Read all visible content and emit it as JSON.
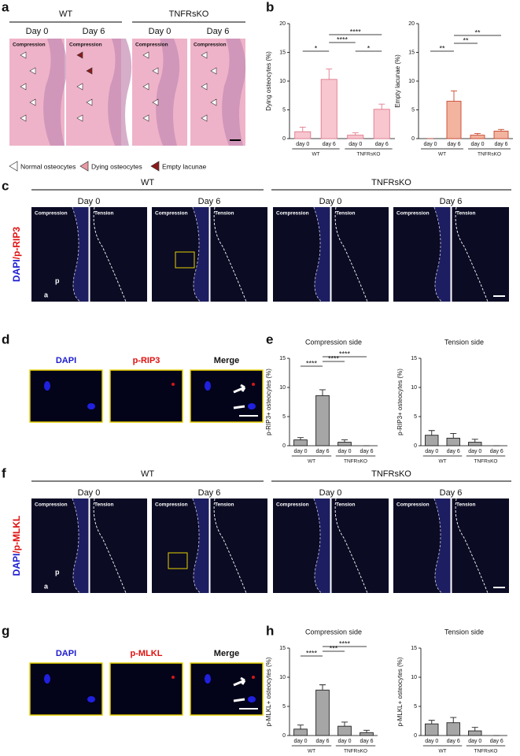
{
  "panel_labels": [
    "a",
    "b",
    "c",
    "d",
    "e",
    "f",
    "g",
    "h"
  ],
  "panel_a": {
    "groups": [
      "WT",
      "TNFRsKO"
    ],
    "days": [
      "Day 0",
      "Day 6",
      "Day 0",
      "Day 6"
    ],
    "image_labels": [
      "Compression",
      "Compression",
      "Compression",
      "Compression"
    ],
    "legend": [
      "Normal osteocytes",
      "Dying osteocytes",
      "Empty lacunae"
    ]
  },
  "panel_c": {
    "stain": [
      "DAPI",
      "/p-RIP3"
    ],
    "groups": [
      "WT",
      "TNFRsKO"
    ],
    "days": [
      "Day 0",
      "Day 6",
      "Day 0",
      "Day 6"
    ],
    "image_labels": [
      "Compression",
      "Tension",
      "Compression",
      "Tension",
      "Compression",
      "Tension",
      "Compression",
      "Tension"
    ],
    "markers": [
      "a",
      "p"
    ]
  },
  "panel_d": {
    "channels": [
      "DAPI",
      "p-RIP3",
      "Merge"
    ]
  },
  "panel_f": {
    "stain": [
      "DAPI",
      "/p-MLKL"
    ],
    "groups": [
      "WT",
      "TNFRsKO"
    ],
    "days": [
      "Day 0",
      "Day 6",
      "Day 0",
      "Day 6"
    ],
    "image_labels": [
      "Compression",
      "Tension",
      "Compression",
      "Tension",
      "Compression",
      "Tension",
      "Compression",
      "Tension"
    ],
    "markers": [
      "a",
      "p"
    ]
  },
  "panel_g": {
    "channels": [
      "DAPI",
      "p-MLKL",
      "Merge"
    ]
  },
  "chart_data": [
    {
      "type": "bar",
      "y_label": "Dying osteocytes (%)",
      "categories": [
        "day 0",
        "day 6",
        "day 0",
        "day 6"
      ],
      "groups": [
        "WT",
        "TNFRsKO"
      ],
      "values": [
        1.2,
        10.3,
        0.6,
        5.1
      ],
      "errors": [
        0.8,
        1.8,
        0.4,
        0.9
      ],
      "color": "#f7c6cf",
      "edge_color": "#e07a8c",
      "ylim": [
        0,
        20
      ],
      "yticks": [
        0,
        5,
        10,
        15,
        20
      ],
      "annotations": [
        "*",
        "****",
        "****",
        "*"
      ]
    },
    {
      "type": "bar",
      "y_label": "Empty lacunae (%)",
      "categories": [
        "day 0",
        "day 6",
        "day 0",
        "day 6"
      ],
      "groups": [
        "WT",
        "TNFRsKO"
      ],
      "values": [
        0,
        6.5,
        0.6,
        1.3
      ],
      "errors": [
        0,
        1.8,
        0.3,
        0.3
      ],
      "color": "#f2b39f",
      "edge_color": "#c8482e",
      "ylim": [
        0,
        20
      ],
      "yticks": [
        0,
        5,
        10,
        15,
        20
      ],
      "annotations": [
        "**",
        "**",
        "**"
      ]
    },
    {
      "type": "bar",
      "title": "Compression side",
      "y_label": "p-RIP3+ osteocytes (%)",
      "categories": [
        "day 0",
        "day 6",
        "day 0",
        "day 6"
      ],
      "groups": [
        "WT",
        "TNFRsKO"
      ],
      "values": [
        1.0,
        8.6,
        0.6,
        0
      ],
      "errors": [
        0.4,
        1.0,
        0.4,
        0
      ],
      "color": "#a6a6a6",
      "edge_color": "#222222",
      "ylim": [
        0,
        15
      ],
      "yticks": [
        0,
        5,
        10,
        15
      ],
      "annotations": [
        "****",
        "****",
        "****"
      ]
    },
    {
      "type": "bar",
      "title": "Tension side",
      "y_label": "p-RIP3+ osteocytes (%)",
      "categories": [
        "day 0",
        "day 6",
        "day 0",
        "day 6"
      ],
      "groups": [
        "WT",
        "TNFRsKO"
      ],
      "values": [
        1.8,
        1.3,
        0.6,
        0
      ],
      "errors": [
        0.8,
        0.8,
        0.5,
        0
      ],
      "color": "#a6a6a6",
      "edge_color": "#222222",
      "ylim": [
        0,
        15
      ],
      "yticks": [
        0,
        5,
        10,
        15
      ]
    },
    {
      "type": "bar",
      "title": "Compression side",
      "y_label": "p-MLKL+ osteocytes (%)",
      "categories": [
        "day 0",
        "day 6",
        "day 0",
        "day 6"
      ],
      "groups": [
        "WT",
        "TNFRsKO"
      ],
      "values": [
        1.1,
        7.8,
        1.6,
        0.5
      ],
      "errors": [
        0.7,
        0.9,
        0.7,
        0.4
      ],
      "color": "#a6a6a6",
      "edge_color": "#222222",
      "ylim": [
        0,
        15
      ],
      "yticks": [
        0,
        5,
        10,
        15
      ],
      "annotations": [
        "****",
        "***",
        "****"
      ]
    },
    {
      "type": "bar",
      "title": "Tension side",
      "y_label": "p-MLKL+ osteocytes (%)",
      "categories": [
        "day 0",
        "day 6",
        "day 0",
        "day 6"
      ],
      "groups": [
        "WT",
        "TNFRsKO"
      ],
      "values": [
        2.0,
        2.2,
        0.8,
        0
      ],
      "errors": [
        0.6,
        0.9,
        0.6,
        0
      ],
      "color": "#a6a6a6",
      "edge_color": "#222222",
      "ylim": [
        0,
        15
      ],
      "yticks": [
        0,
        5,
        10,
        15
      ]
    }
  ]
}
